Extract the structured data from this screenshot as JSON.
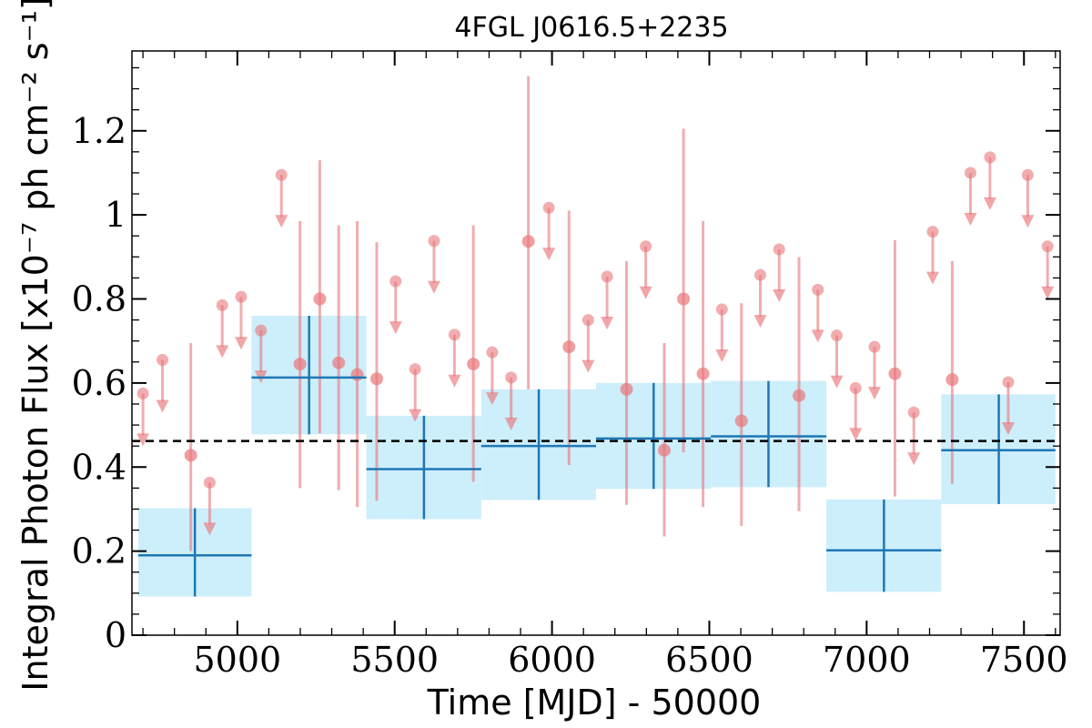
{
  "chart_data": {
    "type": "scatter",
    "title": "4FGL J0616.5+2235",
    "xlabel": "Time [MJD] - 50000",
    "ylabel": "Integral Photon Flux [x10⁻⁷ ph cm⁻² s⁻¹]",
    "xlim": [
      4665,
      7615
    ],
    "ylim": [
      0,
      1.39
    ],
    "xticks": [
      5000,
      5500,
      6000,
      6500,
      7000,
      7500
    ],
    "xtick_labels": [
      "5000",
      "5500",
      "6000",
      "6500",
      "7000",
      "7500"
    ],
    "yticks": [
      0,
      0.2,
      0.4,
      0.6,
      0.8,
      1.0,
      1.2
    ],
    "ytick_labels": [
      "0",
      "0.2",
      "0.4",
      "0.6",
      "0.8",
      "1",
      "1.2"
    ],
    "grid": false,
    "reference_line": {
      "y": 0.462,
      "style": "dashed",
      "color": "#000000"
    },
    "colors": {
      "fine": "#e8767a",
      "coarse_line": "#1f77b4",
      "coarse_fill": "#cdeefb"
    },
    "series": [
      {
        "points": [
          {
            "x": 4852,
            "y": 0.428,
            "ylo": 0.2,
            "yhi": 0.695
          },
          {
            "x": 5199,
            "y": 0.645,
            "ylo": 0.35,
            "yhi": 0.985
          },
          {
            "x": 5262,
            "y": 0.8,
            "ylo": 0.48,
            "yhi": 1.13
          },
          {
            "x": 5322,
            "y": 0.648,
            "ylo": 0.345,
            "yhi": 0.975
          },
          {
            "x": 5381,
            "y": 0.62,
            "ylo": 0.305,
            "yhi": 0.985
          },
          {
            "x": 5443,
            "y": 0.61,
            "ylo": 0.32,
            "yhi": 0.935
          },
          {
            "x": 5750,
            "y": 0.645,
            "ylo": 0.365,
            "yhi": 0.975
          },
          {
            "x": 5925,
            "y": 0.937,
            "ylo": 0.585,
            "yhi": 1.33
          },
          {
            "x": 6054,
            "y": 0.686,
            "ylo": 0.405,
            "yhi": 1.01
          },
          {
            "x": 6237,
            "y": 0.585,
            "ylo": 0.31,
            "yhi": 0.89
          },
          {
            "x": 6357,
            "y": 0.44,
            "ylo": 0.235,
            "yhi": 0.695
          },
          {
            "x": 6418,
            "y": 0.8,
            "ylo": 0.435,
            "yhi": 1.205
          },
          {
            "x": 6480,
            "y": 0.622,
            "ylo": 0.305,
            "yhi": 0.985
          },
          {
            "x": 6602,
            "y": 0.51,
            "ylo": 0.26,
            "yhi": 0.79
          },
          {
            "x": 6785,
            "y": 0.57,
            "ylo": 0.295,
            "yhi": 0.9
          },
          {
            "x": 7090,
            "y": 0.622,
            "ylo": 0.33,
            "yhi": 0.94
          },
          {
            "x": 7272,
            "y": 0.608,
            "ylo": 0.36,
            "yhi": 0.89
          }
        ]
      },
      {
        "upper_limits": [
          {
            "x": 4700,
            "y": 0.575
          },
          {
            "x": 4762,
            "y": 0.655
          },
          {
            "x": 4912,
            "y": 0.363
          },
          {
            "x": 4952,
            "y": 0.785
          },
          {
            "x": 5012,
            "y": 0.805
          },
          {
            "x": 5075,
            "y": 0.725
          },
          {
            "x": 5140,
            "y": 1.095
          },
          {
            "x": 5503,
            "y": 0.842
          },
          {
            "x": 5565,
            "y": 0.633
          },
          {
            "x": 5625,
            "y": 0.938
          },
          {
            "x": 5690,
            "y": 0.715
          },
          {
            "x": 5810,
            "y": 0.673
          },
          {
            "x": 5870,
            "y": 0.613
          },
          {
            "x": 5990,
            "y": 1.017
          },
          {
            "x": 6115,
            "y": 0.75
          },
          {
            "x": 6175,
            "y": 0.853
          },
          {
            "x": 6298,
            "y": 0.925
          },
          {
            "x": 6540,
            "y": 0.775
          },
          {
            "x": 6662,
            "y": 0.857
          },
          {
            "x": 6722,
            "y": 0.918
          },
          {
            "x": 6845,
            "y": 0.822
          },
          {
            "x": 6905,
            "y": 0.713
          },
          {
            "x": 6965,
            "y": 0.588
          },
          {
            "x": 7025,
            "y": 0.686
          },
          {
            "x": 7150,
            "y": 0.53
          },
          {
            "x": 7210,
            "y": 0.96
          },
          {
            "x": 7330,
            "y": 1.1
          },
          {
            "x": 7392,
            "y": 1.137
          },
          {
            "x": 7450,
            "y": 0.602
          },
          {
            "x": 7512,
            "y": 1.095
          },
          {
            "x": 7575,
            "y": 0.925
          }
        ]
      },
      {
        "bins": [
          {
            "x": 4865,
            "xlo": 4685,
            "xhi": 5045,
            "y": 0.19,
            "ylo": 0.092,
            "yhi": 0.302
          },
          {
            "x": 5228,
            "xlo": 5045,
            "xhi": 5410,
            "y": 0.613,
            "ylo": 0.478,
            "yhi": 0.76
          },
          {
            "x": 5593,
            "xlo": 5410,
            "xhi": 5775,
            "y": 0.395,
            "ylo": 0.276,
            "yhi": 0.522
          },
          {
            "x": 5958,
            "xlo": 5775,
            "xhi": 6140,
            "y": 0.45,
            "ylo": 0.322,
            "yhi": 0.585
          },
          {
            "x": 6323,
            "xlo": 6140,
            "xhi": 6505,
            "y": 0.468,
            "ylo": 0.348,
            "yhi": 0.6
          },
          {
            "x": 6688,
            "xlo": 6505,
            "xhi": 6872,
            "y": 0.473,
            "ylo": 0.352,
            "yhi": 0.605
          },
          {
            "x": 7055,
            "xlo": 6872,
            "xhi": 7237,
            "y": 0.202,
            "ylo": 0.103,
            "yhi": 0.323
          },
          {
            "x": 7420,
            "xlo": 7237,
            "xhi": 7600,
            "y": 0.44,
            "ylo": 0.312,
            "yhi": 0.573
          }
        ]
      }
    ]
  }
}
